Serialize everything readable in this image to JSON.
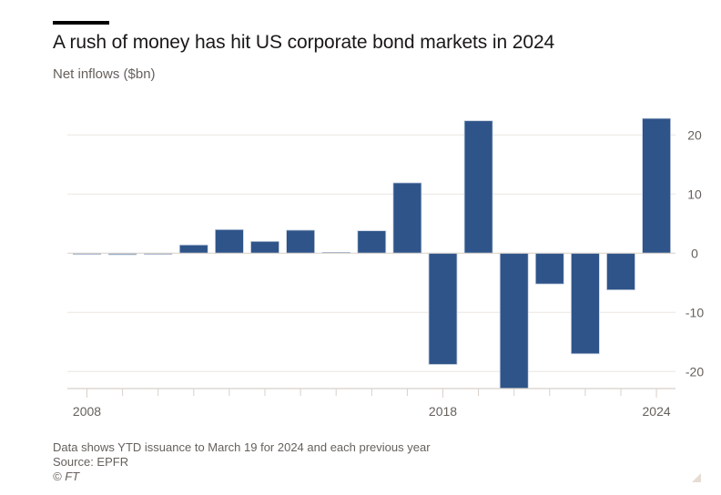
{
  "header": {
    "title": "A rush of money has hit US corporate bond markets in 2024",
    "subtitle": "Net inflows ($bn)"
  },
  "footer": {
    "note": "Data shows YTD issuance to March 19 for 2024 and each previous year",
    "source": "Source: EPFR",
    "copyright": "© FT"
  },
  "colors": {
    "bar": "#2e5489",
    "bar_edge": "#c9d3e1",
    "grid": "#ebe6e1",
    "axis": "#d8d0c9",
    "tick_text": "#66605c"
  },
  "chart_data": {
    "type": "bar",
    "title": "A rush of money has hit US corporate bond markets in 2024",
    "subtitle": "Net inflows ($bn)",
    "xlabel": "",
    "ylabel": "Net inflows ($bn)",
    "categories": [
      "2008",
      "2009",
      "2010",
      "2011",
      "2012",
      "2013",
      "2014",
      "2015",
      "2016",
      "2017",
      "2018",
      "2019",
      "2020",
      "2021",
      "2022",
      "2023",
      "2024"
    ],
    "values": [
      -0.2,
      -0.3,
      -0.1,
      1.4,
      4.0,
      2.0,
      3.9,
      0.2,
      3.8,
      11.9,
      -18.8,
      22.4,
      -23.0,
      -5.2,
      -17.0,
      -6.2,
      22.8
    ],
    "x_tick_labels": [
      "2008",
      "2018",
      "2024"
    ],
    "y_ticks": [
      20,
      10,
      0,
      -10,
      -20
    ],
    "y_tick_labels": [
      "20",
      "10",
      "0",
      "-10",
      "-20"
    ],
    "ylim": [
      -23,
      24
    ],
    "y_axis_side": "right",
    "grid": true,
    "legend": "none"
  }
}
